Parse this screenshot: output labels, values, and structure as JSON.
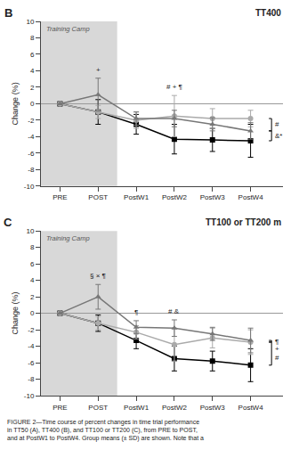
{
  "chart_data": [
    {
      "type": "line",
      "title": "TT400",
      "label": "B",
      "categories": [
        "PRE",
        "POST",
        "PostW1",
        "PostW2",
        "PostW3",
        "PostW4"
      ],
      "xlim": [
        -0.5,
        5.85
      ],
      "ylim": [
        -10,
        10
      ],
      "yticks": [
        -10,
        -8,
        -6,
        -4,
        -2,
        0,
        2,
        4,
        6,
        8,
        10
      ],
      "ylabel": "Change (%)",
      "grid": false,
      "shaded": {
        "text": "Training Camp",
        "from": "PRE",
        "to": "POST",
        "color": "#d8d8d8"
      },
      "series": [
        {
          "color": "#000000",
          "marker": "square",
          "values": [
            0,
            -1.0,
            -2.5,
            -4.3,
            -4.4,
            -4.5
          ],
          "errors": [
            0,
            1.5,
            1.2,
            1.8,
            1.4,
            2.0
          ]
        },
        {
          "color": "#aaaaaa",
          "marker": "circle",
          "values": [
            0,
            -1.0,
            -2.0,
            -1.5,
            -1.8,
            -1.8
          ],
          "errors": [
            0,
            0.8,
            1.0,
            2.5,
            1.2,
            1.0
          ]
        },
        {
          "color": "#777777",
          "marker": "triangle-up",
          "values": [
            0,
            1.1,
            -1.8,
            -1.8,
            -2.5,
            -3.3
          ],
          "errors": [
            0,
            2.0,
            0.8,
            1.0,
            0.8,
            1.0
          ]
        }
      ],
      "annotations": [
        {
          "text": "+",
          "category": "POST"
        },
        {
          "text": "# + ¶",
          "category": "PostW2"
        }
      ],
      "brackets": [
        [
          "#"
        ],
        [
          "&*"
        ]
      ]
    },
    {
      "type": "line",
      "title": "TT100 or TT200 m",
      "label": "C",
      "categories": [
        "PRE",
        "POST",
        "PostW1",
        "PostW2",
        "PostW3",
        "PostW4"
      ],
      "xlim": [
        -0.5,
        5.85
      ],
      "ylim": [
        -10,
        10
      ],
      "yticks": [
        -10,
        -8,
        -6,
        -4,
        -2,
        0,
        2,
        4,
        6,
        8,
        10
      ],
      "ylabel": "Change (%)",
      "grid": false,
      "shaded": {
        "text": "Training Camp",
        "from": "PRE",
        "to": "POST",
        "color": "#d8d8d8"
      },
      "series": [
        {
          "color": "#000000",
          "marker": "square",
          "values": [
            0,
            -1.2,
            -3.3,
            -5.5,
            -5.8,
            -6.3
          ],
          "errors": [
            0,
            1.0,
            1.0,
            1.5,
            1.2,
            2.0
          ]
        },
        {
          "color": "#aaaaaa",
          "marker": "circle",
          "values": [
            0,
            -1.2,
            -2.3,
            -3.8,
            -3.0,
            -3.5
          ],
          "errors": [
            0,
            0.8,
            0.8,
            2.0,
            1.2,
            1.5
          ]
        },
        {
          "color": "#777777",
          "marker": "triangle-up",
          "values": [
            0,
            2.0,
            -1.7,
            -1.8,
            -2.5,
            -3.3
          ],
          "errors": [
            0,
            1.5,
            0.8,
            1.0,
            0.8,
            1.5
          ]
        }
      ],
      "annotations": [
        {
          "text": "§ × ¶",
          "category": "POST"
        },
        {
          "text": "¶",
          "category": "PostW1"
        },
        {
          "text": "# &",
          "category": "PostW2"
        }
      ],
      "brackets": [
        [
          "¶"
        ],
        [
          "+",
          "#"
        ]
      ]
    }
  ],
  "caption": "FIGURE 2—Time course of percent changes in time trial performance\nin TT50 (A), TT400 (B), and TT100 or TT200 (C), from PRE to POST,\nand at PostW1 to PostW4. Group means (± SD) are shown. Note that a"
}
